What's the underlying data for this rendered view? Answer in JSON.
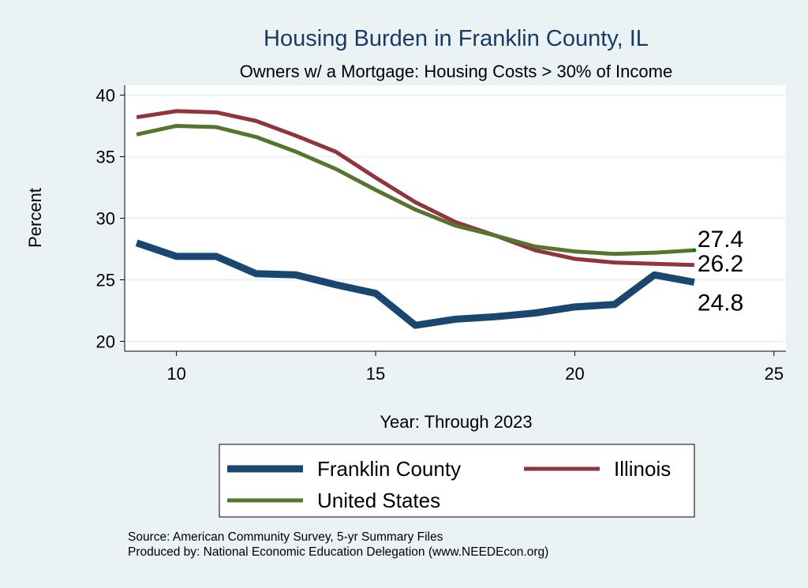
{
  "chart_data": {
    "type": "line",
    "title": "Housing Burden in Franklin County, IL",
    "subtitle": "Owners w/ a Mortgage: Housing Costs > 30% of Income",
    "xlabel": "Year: Through 2023",
    "ylabel": "Percent",
    "xlim": [
      8.7,
      25.3
    ],
    "ylim": [
      19.2,
      40.8
    ],
    "xticks": [
      10,
      15,
      20,
      25
    ],
    "yticks": [
      20,
      25,
      30,
      35,
      40
    ],
    "grid": true,
    "legend_position": "bottom",
    "x": [
      9,
      10,
      11,
      12,
      13,
      14,
      15,
      16,
      17,
      18,
      19,
      20,
      21,
      22,
      23
    ],
    "series": [
      {
        "name": "Franklin County",
        "color": "#1a476f",
        "width": 9,
        "end_label": "24.8",
        "values": [
          28.0,
          26.9,
          26.9,
          25.5,
          25.4,
          24.6,
          23.9,
          21.3,
          21.8,
          22.0,
          22.3,
          22.8,
          23.0,
          25.4,
          24.8
        ]
      },
      {
        "name": "Illinois",
        "color": "#90353b",
        "width": 5,
        "end_label": "26.2",
        "values": [
          38.2,
          38.7,
          38.6,
          37.9,
          36.7,
          35.4,
          33.3,
          31.3,
          29.7,
          28.6,
          27.4,
          26.7,
          26.4,
          26.3,
          26.2
        ]
      },
      {
        "name": "United States",
        "color": "#55752f",
        "width": 5,
        "end_label": "27.4",
        "values": [
          36.8,
          37.5,
          37.4,
          36.6,
          35.4,
          34.0,
          32.3,
          30.7,
          29.4,
          28.6,
          27.7,
          27.3,
          27.1,
          27.2,
          27.4
        ]
      }
    ]
  },
  "notes": {
    "source": "Source: American Community Survey, 5-yr Summary Files",
    "produced": "Produced by: National Economic Education Delegation (www.NEEDEcon.org)"
  }
}
